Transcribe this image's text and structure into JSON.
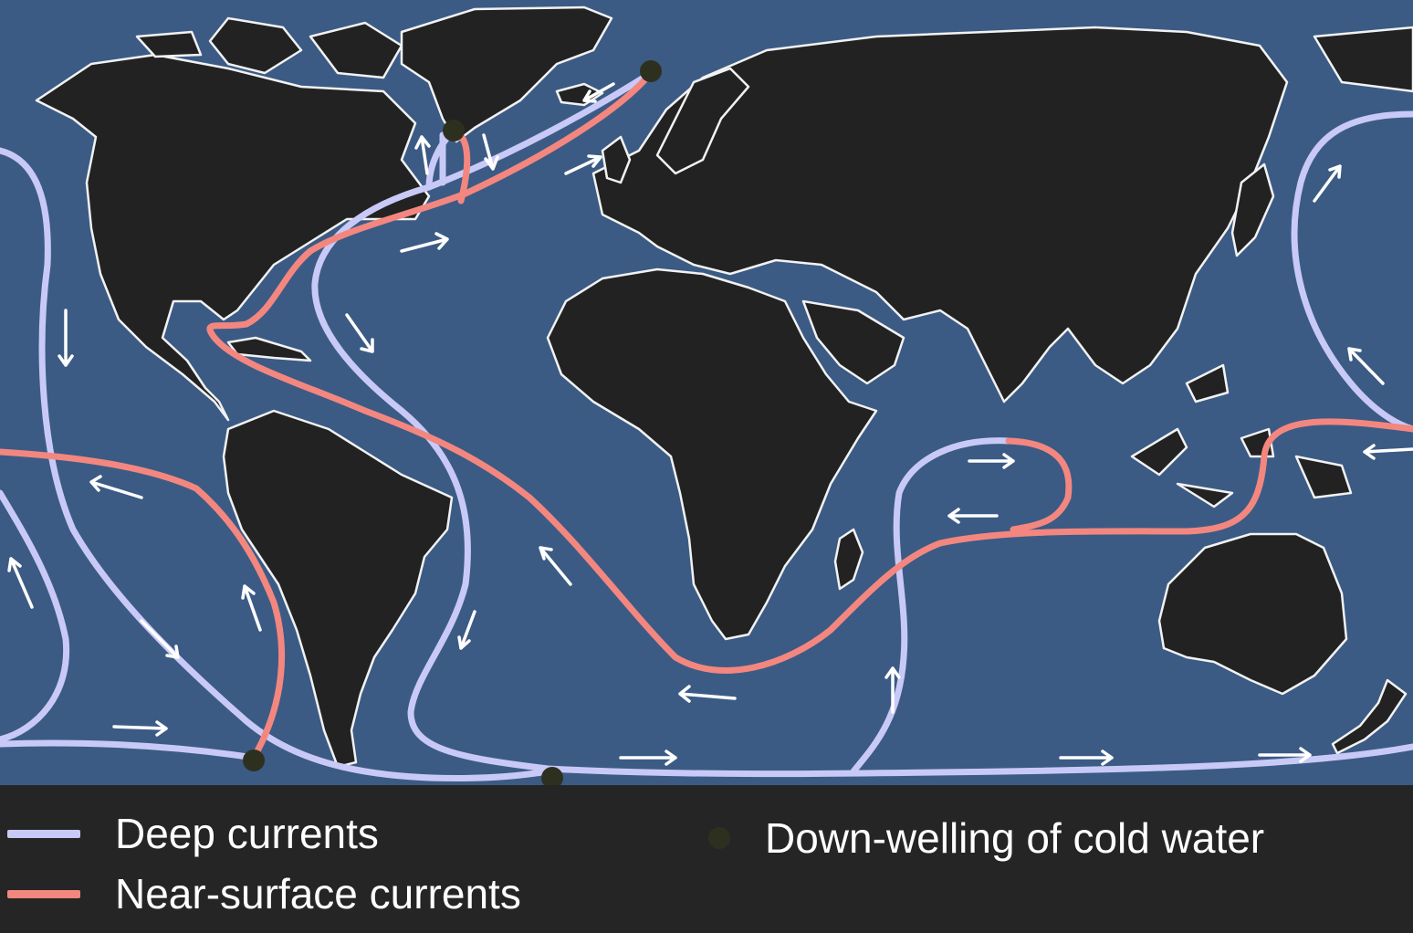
{
  "map": {
    "ocean_color": "#3b5b85",
    "land_color": "#222222",
    "coast_color": "#f2f2f2",
    "deep_color": "#c9c9f7",
    "surface_color": "#f3877f",
    "point_color": "#2e301f"
  },
  "legend": {
    "deep_currents": "Deep currents",
    "near_surface_currents": "Near-surface currents",
    "down_welling": "Down-welling of cold water"
  }
}
